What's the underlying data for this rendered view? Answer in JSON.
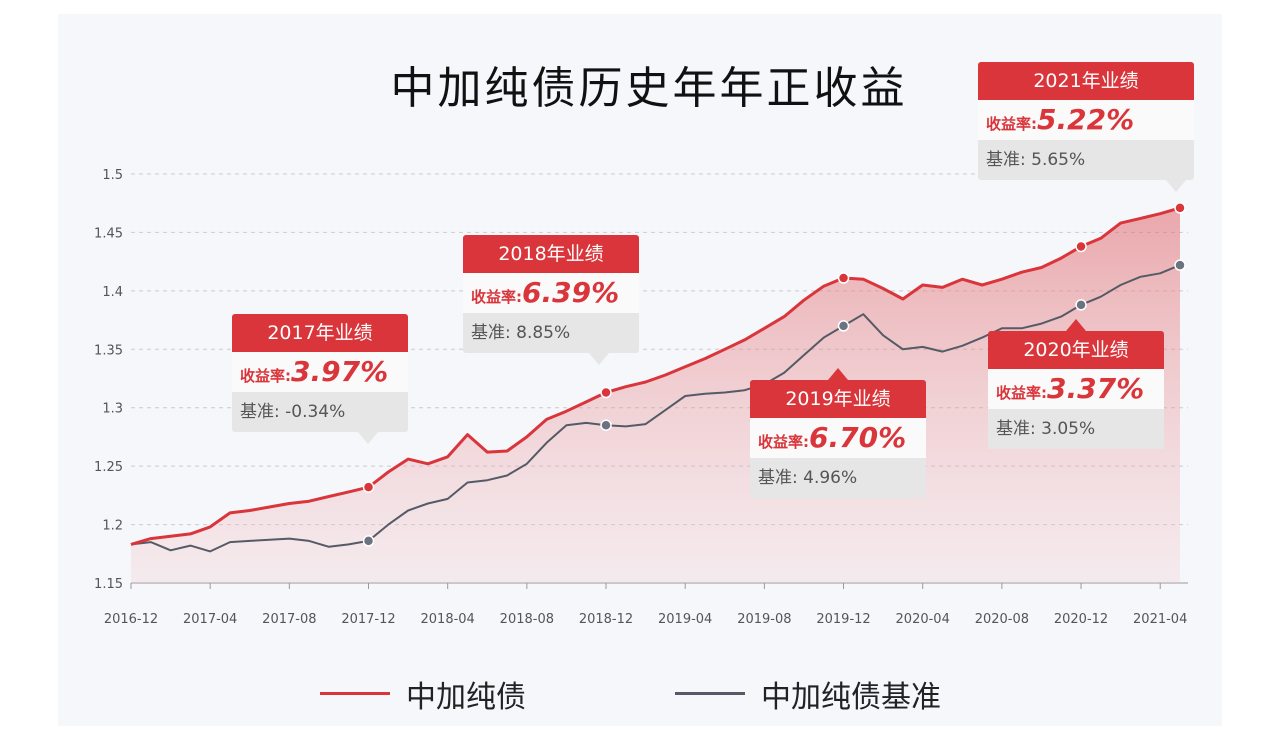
{
  "chart_data": {
    "type": "line",
    "title": "中加纯债历史年年正收益",
    "ylim": [
      1.15,
      1.5
    ],
    "y_ticks": [
      "1.15",
      "1.2",
      "1.25",
      "1.3",
      "1.35",
      "1.4",
      "1.45",
      "1.5"
    ],
    "x_tick_labels": [
      "2016-12",
      "2017-04",
      "2017-08",
      "2017-12",
      "2018-04",
      "2018-08",
      "2018-12",
      "2019-04",
      "2019-08",
      "2019-12",
      "2020-04",
      "2020-08",
      "2020-12",
      "2021-04"
    ],
    "grid": "horizontal dashed",
    "legend_position": "bottom",
    "series": [
      {
        "name": "中加纯债",
        "color": "#d9353a",
        "x": [
          "2016-12",
          "2017-01",
          "2017-02",
          "2017-03",
          "2017-04",
          "2017-05",
          "2017-06",
          "2017-07",
          "2017-08",
          "2017-09",
          "2017-10",
          "2017-11",
          "2017-12",
          "2018-01",
          "2018-02",
          "2018-03",
          "2018-04",
          "2018-05",
          "2018-06",
          "2018-07",
          "2018-08",
          "2018-09",
          "2018-10",
          "2018-11",
          "2018-12",
          "2019-01",
          "2019-02",
          "2019-03",
          "2019-04",
          "2019-05",
          "2019-06",
          "2019-07",
          "2019-08",
          "2019-09",
          "2019-10",
          "2019-11",
          "2019-12",
          "2020-01",
          "2020-02",
          "2020-03",
          "2020-04",
          "2020-05",
          "2020-06",
          "2020-07",
          "2020-08",
          "2020-09",
          "2020-10",
          "2020-11",
          "2020-12",
          "2021-01",
          "2021-02",
          "2021-03",
          "2021-04",
          "2021-05"
        ],
        "values": [
          1.183,
          1.188,
          1.19,
          1.192,
          1.198,
          1.21,
          1.212,
          1.215,
          1.218,
          1.22,
          1.224,
          1.228,
          1.232,
          1.245,
          1.256,
          1.252,
          1.258,
          1.277,
          1.262,
          1.263,
          1.275,
          1.29,
          1.297,
          1.305,
          1.313,
          1.318,
          1.322,
          1.328,
          1.335,
          1.342,
          1.35,
          1.358,
          1.368,
          1.378,
          1.392,
          1.404,
          1.411,
          1.41,
          1.402,
          1.393,
          1.405,
          1.403,
          1.41,
          1.405,
          1.41,
          1.416,
          1.42,
          1.428,
          1.438,
          1.445,
          1.458,
          1.462,
          1.466,
          1.471
        ]
      },
      {
        "name": "中加纯债基准",
        "color": "#555b66",
        "x": [
          "2016-12",
          "2017-01",
          "2017-02",
          "2017-03",
          "2017-04",
          "2017-05",
          "2017-06",
          "2017-07",
          "2017-08",
          "2017-09",
          "2017-10",
          "2017-11",
          "2017-12",
          "2018-01",
          "2018-02",
          "2018-03",
          "2018-04",
          "2018-05",
          "2018-06",
          "2018-07",
          "2018-08",
          "2018-09",
          "2018-10",
          "2018-11",
          "2018-12",
          "2019-01",
          "2019-02",
          "2019-03",
          "2019-04",
          "2019-05",
          "2019-06",
          "2019-07",
          "2019-08",
          "2019-09",
          "2019-10",
          "2019-11",
          "2019-12",
          "2020-01",
          "2020-02",
          "2020-03",
          "2020-04",
          "2020-05",
          "2020-06",
          "2020-07",
          "2020-08",
          "2020-09",
          "2020-10",
          "2020-11",
          "2020-12",
          "2021-01",
          "2021-02",
          "2021-03",
          "2021-04",
          "2021-05"
        ],
        "values": [
          1.183,
          1.185,
          1.178,
          1.182,
          1.177,
          1.185,
          1.186,
          1.187,
          1.188,
          1.186,
          1.181,
          1.183,
          1.186,
          1.2,
          1.212,
          1.218,
          1.222,
          1.236,
          1.238,
          1.242,
          1.252,
          1.27,
          1.285,
          1.287,
          1.285,
          1.284,
          1.286,
          1.298,
          1.31,
          1.312,
          1.313,
          1.315,
          1.32,
          1.33,
          1.345,
          1.36,
          1.37,
          1.38,
          1.362,
          1.35,
          1.352,
          1.348,
          1.353,
          1.36,
          1.368,
          1.368,
          1.372,
          1.378,
          1.388,
          1.395,
          1.405,
          1.412,
          1.415,
          1.422
        ]
      }
    ],
    "annotations": [
      {
        "heading": "2017年业绩",
        "rate_label": "收益率:",
        "rate": "3.97%",
        "bench": "基准: -0.34%"
      },
      {
        "heading": "2018年业绩",
        "rate_label": "收益率:",
        "rate": "6.39%",
        "bench": "基准: 8.85%"
      },
      {
        "heading": "2019年业绩",
        "rate_label": "收益率:",
        "rate": "6.70%",
        "bench": "基准: 4.96%"
      },
      {
        "heading": "2020年业绩",
        "rate_label": "收益率:",
        "rate": "3.37%",
        "bench": "基准: 3.05%"
      },
      {
        "heading": "2021年业绩",
        "rate_label": "收益率:",
        "rate": "5.22%",
        "bench": "基准: 5.65%"
      }
    ]
  },
  "legend": [
    {
      "label": "中加纯债",
      "color": "#d9353a"
    },
    {
      "label": "中加纯债基准",
      "color": "#555b66"
    }
  ]
}
